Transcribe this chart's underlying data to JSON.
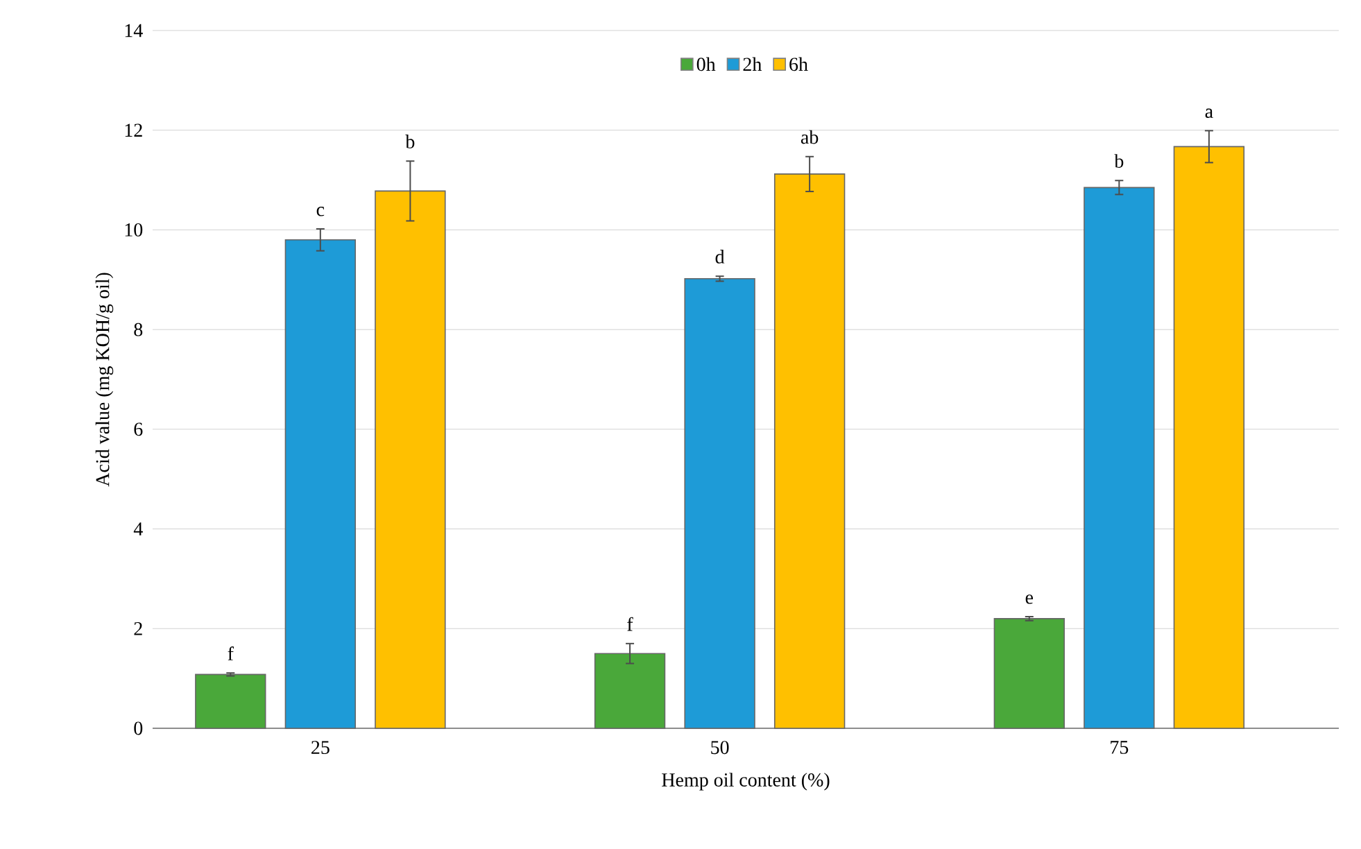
{
  "chart_data": {
    "type": "bar",
    "xlabel": "Hemp oil content (%)",
    "ylabel": "Acid value (mg KOH/g oil)",
    "categories": [
      "25",
      "50",
      "75"
    ],
    "series": [
      {
        "name": "0h",
        "color": "#4aa83a",
        "values": [
          1.08,
          1.5,
          2.2
        ],
        "errors": [
          0.03,
          0.2,
          0.04
        ],
        "value_labels": [
          "f",
          "f",
          "e"
        ]
      },
      {
        "name": "2h",
        "color": "#1e9bd7",
        "values": [
          9.8,
          9.02,
          10.85
        ],
        "errors": [
          0.22,
          0.05,
          0.14
        ],
        "value_labels": [
          "c",
          "d",
          "b"
        ]
      },
      {
        "name": "6h",
        "color": "#ffc000",
        "values": [
          10.78,
          11.12,
          11.67
        ],
        "errors": [
          0.6,
          0.35,
          0.32
        ],
        "value_labels": [
          "b",
          "ab",
          "a"
        ]
      }
    ],
    "ylim": [
      0,
      14
    ],
    "yticks": [
      0,
      2,
      4,
      6,
      8,
      10,
      12,
      14
    ],
    "grid": "y",
    "legend": "top"
  }
}
